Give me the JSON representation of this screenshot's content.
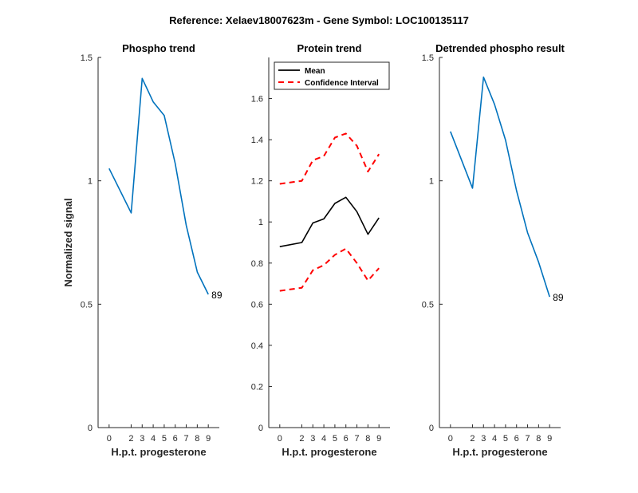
{
  "figure": {
    "title": "Reference:  Xelaev18007623m - Gene Symbol:  LOC100135117"
  },
  "chart_data": [
    {
      "type": "line",
      "title": "Phospho trend",
      "xlabel": "H.p.t. progesterone",
      "ylabel": "Normalized signal",
      "x": [
        0,
        2,
        3,
        4,
        5,
        6,
        7,
        8,
        9
      ],
      "xticklabels": [
        "0",
        "2",
        "3",
        "4",
        "5",
        "6",
        "7",
        "8",
        "9"
      ],
      "ylim": [
        0,
        1.5
      ],
      "yticks": [
        0,
        0.5,
        1,
        1.5
      ],
      "yticklabels": [
        "0",
        "0.5",
        "1",
        "1.5"
      ],
      "series": [
        {
          "values": [
            1.05,
            0.87,
            1.415,
            1.32,
            1.265,
            1.07,
            0.82,
            0.63,
            0.54
          ],
          "color": "#0072BD",
          "dash": "solid"
        }
      ],
      "end_label": "89",
      "grid": false
    },
    {
      "type": "line",
      "title": "Protein trend",
      "xlabel": "H.p.t. progesterone",
      "ylabel": "",
      "x": [
        0,
        2,
        3,
        4,
        5,
        6,
        7,
        8,
        9
      ],
      "xticklabels": [
        "0",
        "2",
        "3",
        "4",
        "5",
        "6",
        "7",
        "8",
        "9"
      ],
      "ylim": [
        0,
        1.8
      ],
      "yticks": [
        0,
        0.2,
        0.4,
        0.6,
        0.8,
        1,
        1.2,
        1.4,
        1.6
      ],
      "yticklabels": [
        "0",
        "0.2",
        "0.4",
        "0.6",
        "0.8",
        "1",
        "1.2",
        "1.4",
        "1.6"
      ],
      "series": [
        {
          "name": "Mean",
          "values": [
            0.88,
            0.9,
            0.995,
            1.015,
            1.09,
            1.12,
            1.05,
            0.94,
            1.02
          ],
          "color": "#000000",
          "dash": "solid"
        },
        {
          "name": "Confidence Interval",
          "values": [
            1.185,
            1.2,
            1.3,
            1.32,
            1.41,
            1.43,
            1.37,
            1.245,
            1.33
          ],
          "color": "#FF0000",
          "dash": "dashed"
        },
        {
          "values": [
            0.665,
            0.68,
            0.765,
            0.79,
            0.84,
            0.87,
            0.8,
            0.715,
            0.775
          ],
          "color": "#FF0000",
          "dash": "dashed"
        }
      ],
      "legend": {
        "position": "top-left",
        "entries": [
          "Mean",
          "Confidence Interval"
        ]
      },
      "grid": false
    },
    {
      "type": "line",
      "title": "Detrended phospho result",
      "xlabel": "H.p.t. progesterone",
      "ylabel": "",
      "x": [
        0,
        2,
        3,
        4,
        5,
        6,
        7,
        8,
        9
      ],
      "xticklabels": [
        "0",
        "2",
        "3",
        "4",
        "5",
        "6",
        "7",
        "8",
        "9"
      ],
      "ylim": [
        0,
        1.5
      ],
      "yticks": [
        0,
        0.5,
        1,
        1.5
      ],
      "yticklabels": [
        "0",
        "0.5",
        "1",
        "1.5"
      ],
      "series": [
        {
          "values": [
            1.2,
            0.97,
            1.42,
            1.31,
            1.165,
            0.96,
            0.79,
            0.67,
            0.53
          ],
          "color": "#0072BD",
          "dash": "solid"
        }
      ],
      "end_label": "89",
      "grid": false
    }
  ]
}
